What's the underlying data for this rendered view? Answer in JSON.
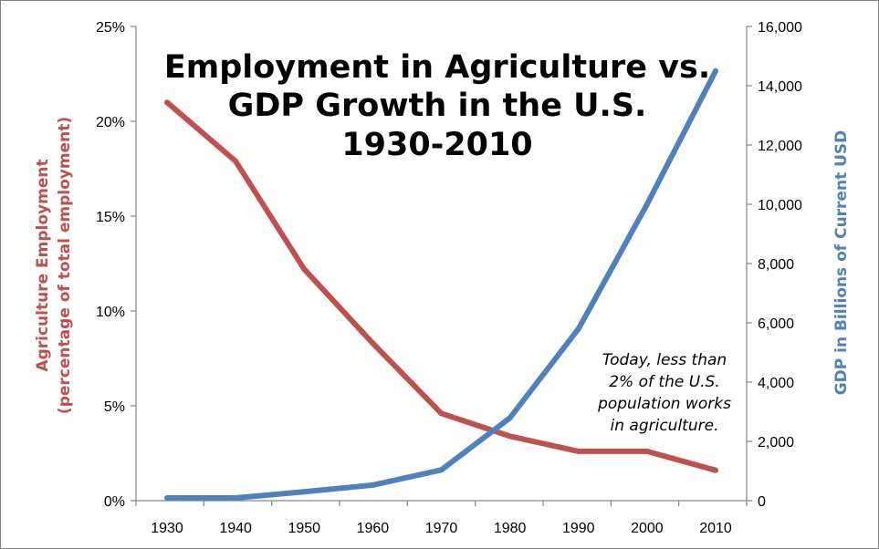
{
  "chart_data": {
    "type": "line",
    "title_lines": [
      "Employment in Agriculture vs.",
      "GDP Growth in the U.S.",
      "1930-2010"
    ],
    "x": [
      1930,
      1940,
      1950,
      1960,
      1970,
      1980,
      1990,
      2000,
      2010
    ],
    "x_tick_labels": [
      "1930",
      "1940",
      "1950",
      "1960",
      "1970",
      "1980",
      "1990",
      "2000",
      "2010"
    ],
    "y_left": {
      "label_lines": [
        "Agriculture Employment",
        "(percentage of total employment)"
      ],
      "ylim": [
        0,
        25
      ],
      "tick_values": [
        0,
        5,
        10,
        15,
        20,
        25
      ],
      "tick_labels": [
        "0%",
        "5%",
        "10%",
        "15%",
        "20%",
        "25%"
      ],
      "color": "#c0504d"
    },
    "y_right": {
      "label": "GDP in Billions of Current USD",
      "ylim": [
        0,
        16000
      ],
      "tick_values": [
        0,
        2000,
        4000,
        6000,
        8000,
        10000,
        12000,
        14000,
        16000
      ],
      "tick_labels": [
        "0",
        "2,000",
        "4,000",
        "6,000",
        "8,000",
        "10,000",
        "12,000",
        "14,000",
        "16,000"
      ],
      "color": "#4f81bd"
    },
    "series": [
      {
        "axis": "left",
        "color": "#c0504d",
        "values": [
          21.0,
          17.9,
          12.2,
          8.3,
          4.6,
          3.4,
          2.6,
          2.6,
          1.6
        ]
      },
      {
        "axis": "right",
        "color": "#4f81bd",
        "values": [
          92,
          92,
          300,
          526,
          1038,
          2790,
          5800,
          10000,
          14500
        ]
      }
    ],
    "annotation_lines": [
      "Today, less than",
      "2% of the U.S.",
      "population works",
      "in agriculture."
    ],
    "grid": false,
    "legend": "none"
  }
}
